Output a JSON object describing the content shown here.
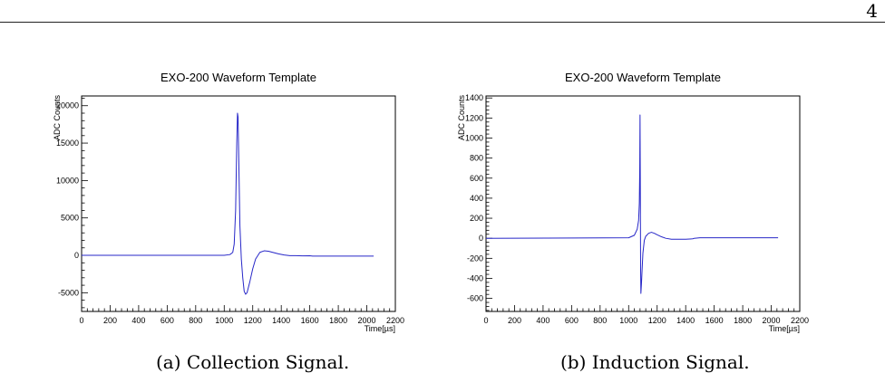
{
  "page": {
    "number": "4"
  },
  "chart_data": [
    {
      "type": "line",
      "title": "EXO-200 Waveform Template",
      "xlabel": "Time[µs]",
      "ylabel": "ADC Counts",
      "xlim": [
        0,
        2200
      ],
      "ylim": [
        -7500,
        21300
      ],
      "xticks": [
        0,
        200,
        400,
        600,
        800,
        1000,
        1200,
        1400,
        1600,
        1800,
        2000,
        2200
      ],
      "yticks": [
        -5000,
        0,
        5000,
        10000,
        15000,
        20000
      ],
      "line_color": "#2727c8",
      "grid": false,
      "caption": "(a) Collection Signal.",
      "series": [
        {
          "x": [
            0,
            1000,
            1040,
            1060,
            1070,
            1080,
            1088,
            1093,
            1097,
            1102,
            1110,
            1120,
            1130,
            1140,
            1150,
            1160,
            1180,
            1200,
            1220,
            1250,
            1280,
            1310,
            1340,
            1380,
            1420,
            1460,
            1500,
            1550,
            1600,
            1620,
            1700,
            1800,
            1900,
            2048
          ],
          "y": [
            0,
            0,
            100,
            400,
            1500,
            6000,
            15000,
            19000,
            18500,
            13000,
            4000,
            -500,
            -3000,
            -4800,
            -5200,
            -5000,
            -3500,
            -1800,
            -500,
            400,
            600,
            550,
            400,
            200,
            50,
            -50,
            -50,
            -80,
            -60,
            -100,
            -100,
            -100,
            -100,
            -100
          ]
        }
      ]
    },
    {
      "type": "line",
      "title": "EXO-200 Waveform Template",
      "xlabel": "Time[µs]",
      "ylabel": "ADC Counts",
      "xlim": [
        0,
        2200
      ],
      "ylim": [
        -730,
        1420
      ],
      "xticks": [
        0,
        200,
        400,
        600,
        800,
        1000,
        1200,
        1400,
        1600,
        1800,
        2000,
        2200
      ],
      "yticks": [
        -600,
        -400,
        -200,
        0,
        200,
        400,
        600,
        800,
        1000,
        1200,
        1400
      ],
      "line_color": "#2727c8",
      "grid": false,
      "caption": "(b) Induction Signal.",
      "series": [
        {
          "x": [
            0,
            1000,
            1040,
            1060,
            1070,
            1075,
            1078,
            1080,
            1082,
            1084,
            1086,
            1090,
            1095,
            1100,
            1110,
            1120,
            1140,
            1160,
            1180,
            1200,
            1230,
            1260,
            1300,
            1350,
            1400,
            1450,
            1460,
            1500,
            1600,
            1800,
            2000,
            2048
          ],
          "y": [
            0,
            5,
            30,
            90,
            180,
            350,
            700,
            1230,
            500,
            -300,
            -550,
            -450,
            -300,
            -150,
            -20,
            20,
            50,
            60,
            50,
            35,
            15,
            0,
            -10,
            -10,
            -10,
            -5,
            0,
            5,
            5,
            5,
            5,
            5
          ]
        }
      ]
    }
  ]
}
